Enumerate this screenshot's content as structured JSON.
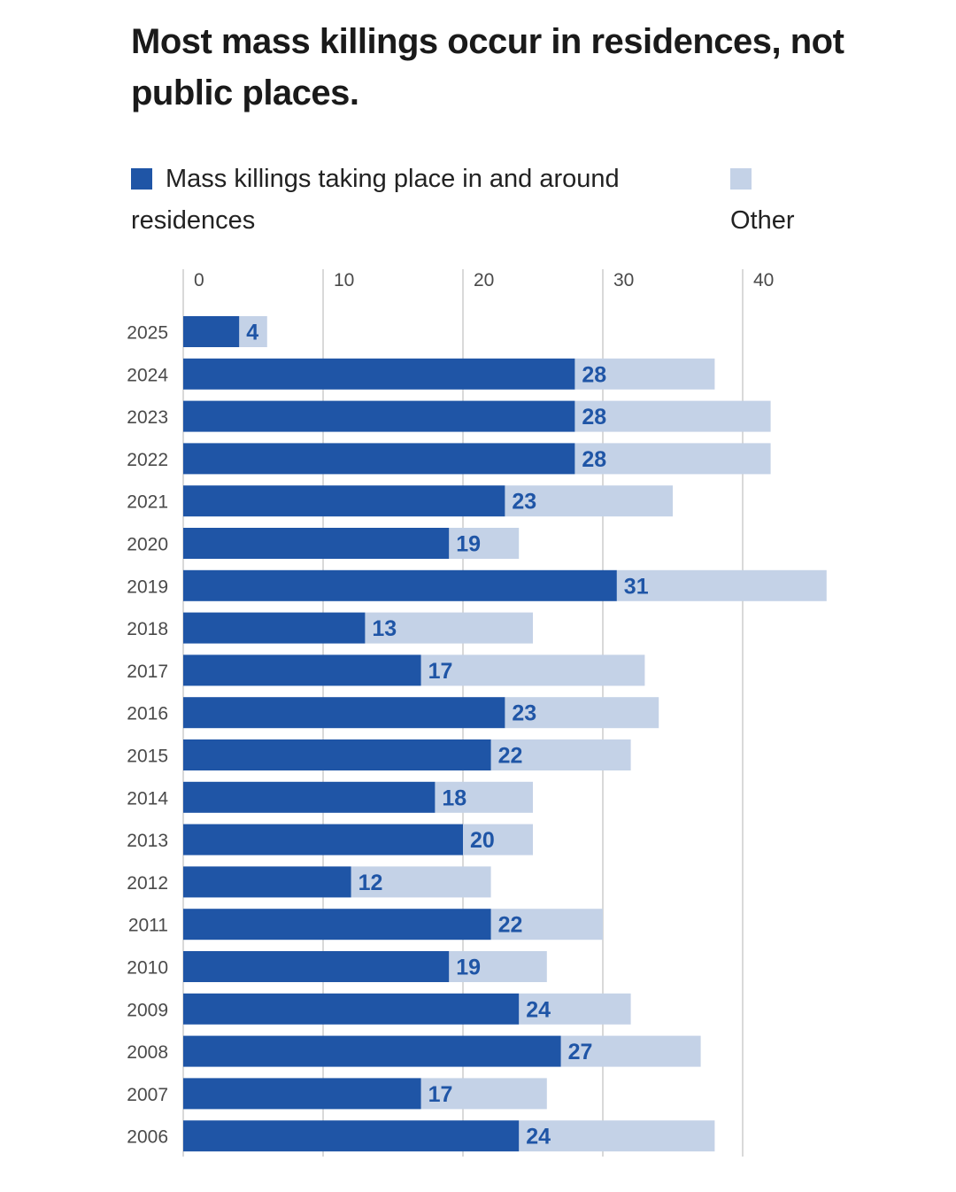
{
  "title": "Most mass killings occur in residences, not public places.",
  "colors": {
    "residence": "#1f55a6",
    "other": "#c4d2e7",
    "grid": "#d9d9d9",
    "text": "#4a4a4a"
  },
  "legend": {
    "residence_label": "Mass killings taking place in and around residences",
    "other_label": "Other"
  },
  "chart_data": {
    "type": "bar",
    "orientation": "horizontal",
    "stacked": true,
    "title": "Most mass killings occur in residences, not public places.",
    "categories": [
      "2025",
      "2024",
      "2023",
      "2022",
      "2021",
      "2020",
      "2019",
      "2018",
      "2017",
      "2016",
      "2015",
      "2014",
      "2013",
      "2012",
      "2011",
      "2010",
      "2009",
      "2008",
      "2007",
      "2006"
    ],
    "series": [
      {
        "name": "Mass killings taking place in and around residences",
        "values": [
          4,
          28,
          28,
          28,
          23,
          19,
          31,
          13,
          17,
          23,
          22,
          18,
          20,
          12,
          22,
          19,
          24,
          27,
          17,
          24
        ]
      },
      {
        "name": "Other",
        "values": [
          2,
          10,
          14,
          14,
          12,
          5,
          15,
          12,
          16,
          11,
          10,
          7,
          5,
          10,
          8,
          7,
          8,
          10,
          9,
          14
        ]
      }
    ],
    "data_labels": "residence series value shown at end of dark segment",
    "xlim": [
      0,
      45
    ],
    "xticks": [
      0,
      10,
      20,
      30,
      40
    ],
    "grid": true,
    "legend_position": "top"
  }
}
